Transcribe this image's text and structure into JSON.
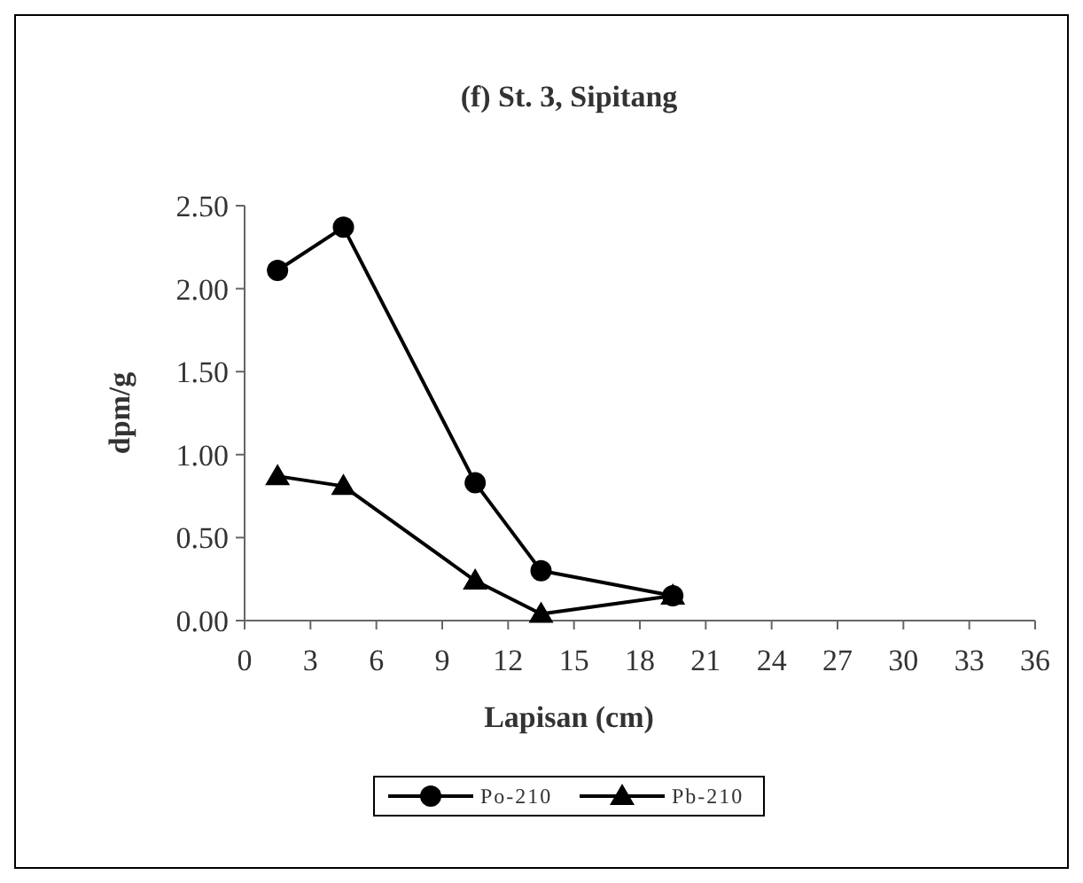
{
  "chart_data": {
    "type": "line",
    "title": "(f) St. 3, Sipitang",
    "xlabel": "Lapisan (cm)",
    "ylabel": "dpm/g",
    "x": [
      1.5,
      4.5,
      10.5,
      13.5,
      19.5
    ],
    "series": [
      {
        "name": "Po-210",
        "color": "#000000",
        "marker": "circle",
        "values": [
          2.11,
          2.37,
          0.83,
          0.3,
          0.15
        ]
      },
      {
        "name": "Pb-210",
        "color": "#000000",
        "marker": "triangle",
        "values": [
          0.87,
          0.81,
          0.24,
          0.04,
          0.15
        ]
      }
    ],
    "xlim": [
      0,
      36
    ],
    "xticks": [
      0,
      3,
      6,
      9,
      12,
      15,
      18,
      21,
      24,
      27,
      30,
      33,
      36
    ],
    "ylim": [
      0,
      2.5
    ],
    "yticks": [
      {
        "value": 0,
        "label": "0.00"
      },
      {
        "value": 0.5,
        "label": "0.50"
      },
      {
        "value": 1,
        "label": "1.00"
      },
      {
        "value": 1.5,
        "label": "1.50"
      },
      {
        "value": 2,
        "label": "2.00"
      },
      {
        "value": 2.5,
        "label": "2.50"
      }
    ],
    "grid": false,
    "legend": "bottom",
    "line_style": "solid"
  }
}
